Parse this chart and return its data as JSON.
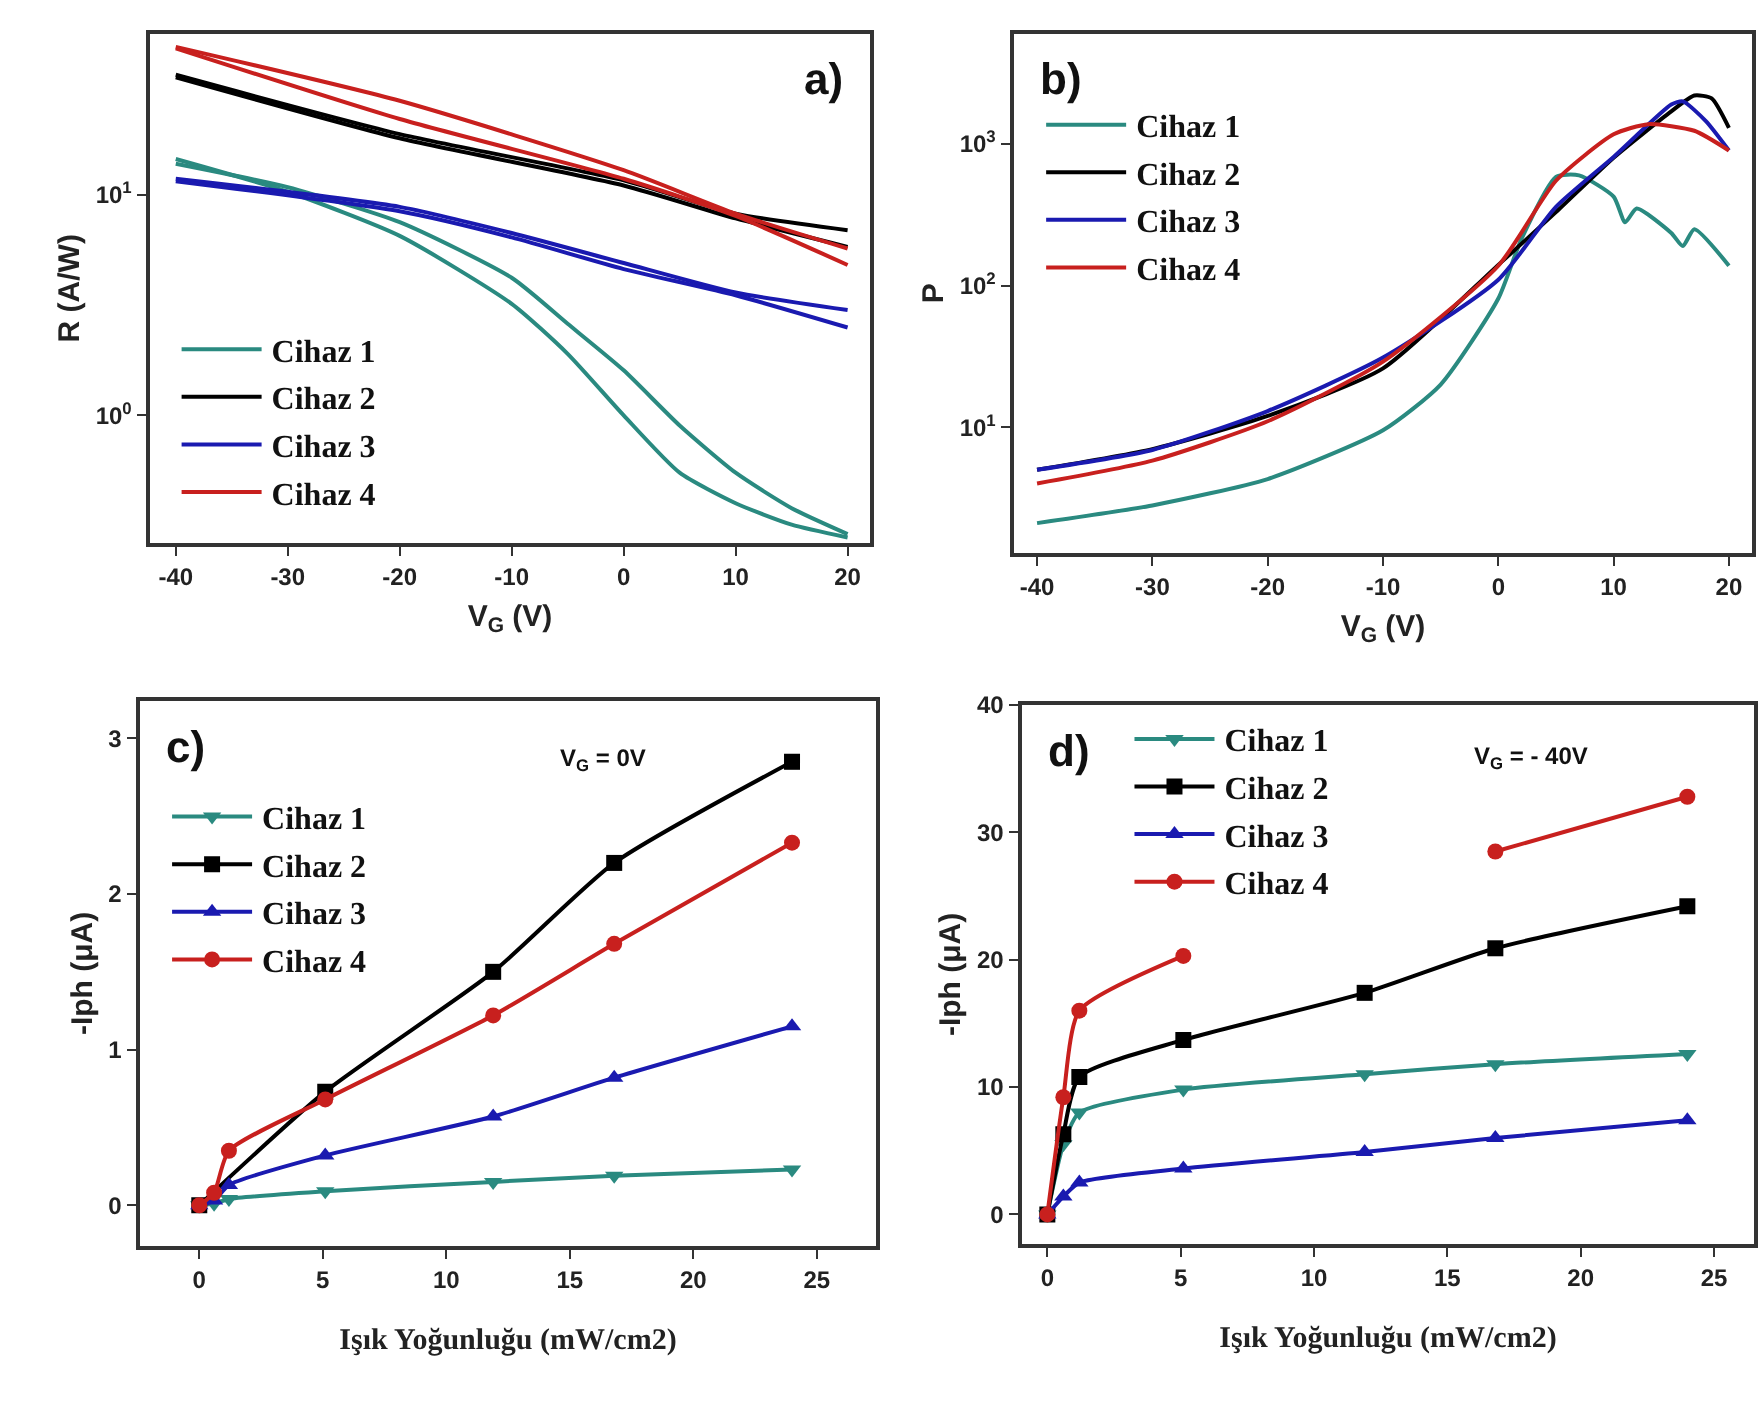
{
  "chart_data": [
    {
      "type": "line",
      "title": "a)",
      "xlabel": "V$_{G}$ (V)",
      "ylabel": "R (A/W)",
      "log": "y",
      "legend": "bottom left",
      "marker": "none",
      "xlim": [
        -42.3,
        22
      ],
      "xticks": [
        -40,
        -30,
        -20,
        -10,
        0,
        10,
        20
      ],
      "ylim": [
        0.265,
        53.5
      ],
      "yticks": [
        {
          "value": 1,
          "label": "10$^{0}$"
        },
        {
          "value": 10,
          "label": "10$^{1}$"
        }
      ],
      "series": [
        {
          "name": "Cihaz 1",
          "color": "#2a8a80",
          "x": [
            -40,
            -30,
            -20,
            -10,
            -5,
            0,
            5,
            10,
            15,
            20
          ],
          "values": [
            14.5,
            10.3,
            6.5,
            3.2,
            1.9,
            1.0,
            0.55,
            0.4,
            0.32,
            0.28
          ]
        },
        {
          "color": "#2a8a80",
          "x": [
            -40,
            -30,
            -20,
            -10,
            -5,
            0,
            5,
            10,
            15,
            20
          ],
          "values": [
            13.8,
            10.8,
            7.5,
            4.2,
            2.6,
            1.6,
            0.9,
            0.55,
            0.38,
            0.29
          ]
        },
        {
          "name": "Cihaz 2",
          "color": "#000000",
          "x": [
            -40,
            -20,
            0,
            10,
            20
          ],
          "values": [
            34.9,
            18.8,
            11.6,
            8.2,
            6.9
          ]
        },
        {
          "color": "#000000",
          "x": [
            -40,
            -20,
            0,
            10,
            20
          ],
          "values": [
            34,
            18,
            11,
            7.8,
            5.8
          ]
        },
        {
          "name": "Cihaz 3",
          "color": "#1a1ab0",
          "x": [
            -40,
            -20,
            -10,
            0,
            10,
            20
          ],
          "values": [
            11.8,
            8.8,
            6.7,
            4.9,
            3.6,
            3.0
          ]
        },
        {
          "color": "#1a1ab0",
          "x": [
            -40,
            -20,
            -10,
            0,
            10,
            20
          ],
          "values": [
            11.5,
            8.4,
            6.4,
            4.6,
            3.5,
            2.5
          ]
        },
        {
          "name": "Cihaz 4",
          "color": "#c8201e",
          "x": [
            -40,
            -20,
            0,
            10,
            20
          ],
          "values": [
            46.7,
            26.6,
            12.9,
            8.2,
            5.7
          ]
        },
        {
          "color": "#c8201e",
          "x": [
            -40,
            -20,
            0,
            10,
            20
          ],
          "values": [
            46,
            22,
            11.8,
            8.0,
            4.8
          ]
        }
      ]
    },
    {
      "type": "line",
      "title": "b)",
      "xlabel": "V$_{G}$ (V)",
      "ylabel": "P",
      "log": "y",
      "legend": "top left",
      "marker": "none",
      "xlim": [
        -42,
        22
      ],
      "xticks": [
        -40,
        -30,
        -20,
        -10,
        0,
        10,
        20
      ],
      "ylim": [
        1.3,
        6000
      ],
      "yticks": [
        {
          "value": 10,
          "label": "10$^{1}$"
        },
        {
          "value": 100,
          "label": "10$^{2}$"
        },
        {
          "value": 1000,
          "label": "10$^{3}$"
        }
      ],
      "series": [
        {
          "name": "Cihaz 1",
          "color": "#2a8a80",
          "x": [
            -40,
            -30,
            -20,
            -10,
            -5,
            0,
            2,
            5,
            7,
            10,
            11,
            12,
            15,
            16,
            17,
            20
          ],
          "values": [
            2.1,
            2.8,
            4.3,
            9.5,
            20,
            81,
            213,
            585,
            600,
            425,
            280,
            350,
            235,
            190,
            250,
            138
          ]
        },
        {
          "name": "Cihaz 2",
          "color": "#000000",
          "x": [
            -40,
            -30,
            -20,
            -10,
            0,
            5,
            10,
            15,
            17,
            18.5,
            20
          ],
          "values": [
            5.0,
            7.0,
            12,
            26,
            140,
            330,
            800,
            1700,
            2200,
            2100,
            1300
          ]
        },
        {
          "name": "Cihaz 3",
          "color": "#1a1ab0",
          "x": [
            -40,
            -30,
            -20,
            -10,
            0,
            5,
            10,
            15,
            16,
            18,
            20
          ],
          "values": [
            5.0,
            6.9,
            13,
            31,
            110,
            360,
            810,
            1900,
            2000,
            1450,
            900
          ]
        },
        {
          "name": "Cihaz 4",
          "color": "#c8201e",
          "x": [
            -40,
            -30,
            -20,
            -10,
            0,
            5,
            10,
            13,
            17,
            20
          ],
          "values": [
            4.0,
            5.8,
            11,
            29,
            138,
            550,
            1170,
            1380,
            1240,
            900
          ]
        }
      ]
    },
    {
      "type": "line",
      "title": "c)",
      "xlabel": "Işık Yoğunluğu (mW/cm2)",
      "ylabel": "-Iph (μA)",
      "legend": "top left",
      "annotations": [
        "V$_{G}$ = 0V"
      ],
      "xlim": [
        -2.4,
        27.4
      ],
      "xticks": [
        0,
        5,
        10,
        15,
        20,
        25
      ],
      "ylim": [
        -0.26,
        3.24
      ],
      "yticks": [
        0,
        1,
        2,
        3
      ],
      "series": [
        {
          "name": "Cihaz 1",
          "color": "#2a8a80",
          "marker": "triangle-down",
          "x": [
            0,
            0.6,
            1.2,
            5.1,
            11.9,
            16.8,
            24
          ],
          "values": [
            0,
            0.01,
            0.04,
            0.09,
            0.15,
            0.19,
            0.23
          ]
        },
        {
          "name": "Cihaz 2",
          "color": "#000000",
          "marker": "square",
          "x": [
            0,
            5.1,
            11.9,
            16.8,
            24
          ],
          "values": [
            0,
            0.73,
            1.5,
            2.2,
            2.85
          ]
        },
        {
          "name": "Cihaz 3",
          "color": "#1a1ab0",
          "marker": "triangle",
          "x": [
            0,
            0.6,
            1.2,
            5.1,
            11.9,
            16.8,
            24
          ],
          "values": [
            0,
            0.03,
            0.13,
            0.32,
            0.57,
            0.82,
            1.15
          ]
        },
        {
          "name": "Cihaz 4",
          "color": "#c8201e",
          "marker": "circle",
          "x": [
            0,
            0.6,
            1.2,
            5.1,
            11.9,
            16.8,
            24
          ],
          "values": [
            0,
            0.08,
            0.35,
            0.68,
            1.22,
            1.68,
            2.33
          ]
        }
      ]
    },
    {
      "type": "line",
      "title": "d)",
      "xlabel": "Işık Yoğunluğu (mW/cm2)",
      "ylabel": "-Iph (μA)",
      "legend": "top left",
      "annotations": [
        "V$_{G}$ = - 40V"
      ],
      "xlim": [
        -0.95,
        26.5
      ],
      "xticks": [
        0,
        5,
        10,
        15,
        20,
        25
      ],
      "ylim": [
        -2.3,
        40
      ],
      "yticks": [
        0,
        10,
        20,
        30,
        40
      ],
      "series": [
        {
          "name": "Cihaz 1",
          "color": "#2a8a80",
          "marker": "triangle-down",
          "x": [
            0,
            0.6,
            1.2,
            5.1,
            11.9,
            16.8,
            24
          ],
          "values": [
            0,
            5.5,
            8.0,
            9.8,
            11.0,
            11.8,
            12.6
          ]
        },
        {
          "name": "Cihaz 2",
          "color": "#000000",
          "marker": "square",
          "x": [
            0,
            0.6,
            1.2,
            5.1,
            11.9,
            16.8,
            24
          ],
          "values": [
            0,
            6.3,
            10.8,
            13.7,
            17.4,
            20.9,
            24.2
          ]
        },
        {
          "name": "Cihaz 3",
          "color": "#1a1ab0",
          "marker": "triangle",
          "x": [
            0,
            0.6,
            1.2,
            5.1,
            11.9,
            16.8,
            24
          ],
          "values": [
            0,
            1.4,
            2.5,
            3.6,
            4.9,
            6.0,
            7.4
          ]
        },
        {
          "name": "Cihaz 4",
          "color": "#c8201e",
          "marker": "circle",
          "x": [
            0,
            0.6,
            1.2,
            5.1,
            11.9,
            16.8,
            24
          ],
          "values": [
            0,
            9.2,
            16.0,
            20.3,
            null,
            28.5,
            32.8
          ]
        }
      ]
    }
  ]
}
